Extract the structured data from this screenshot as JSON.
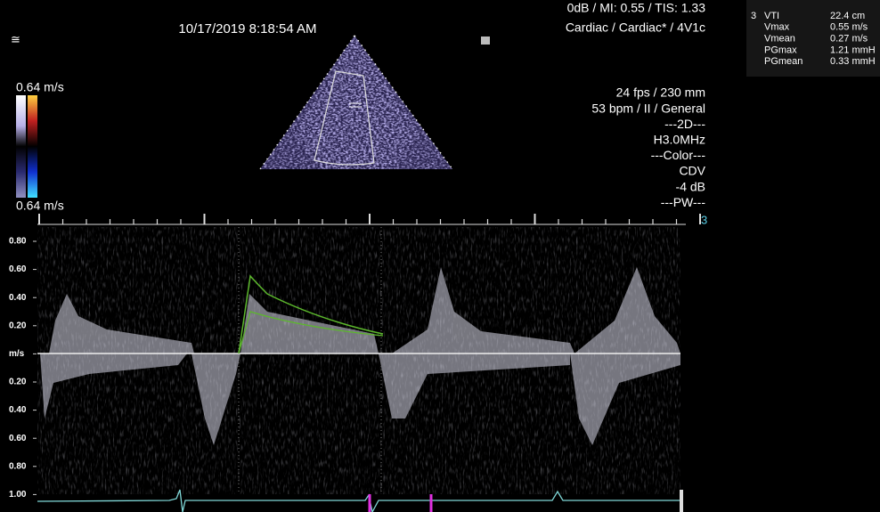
{
  "header": {
    "datetime": "10/17/2019 8:18:54 AM",
    "acoustic": "0dB / MI: 0.55 / TIS: 1.33",
    "preset": "Cardiac / Cardiac* / 4V1c"
  },
  "measurements": {
    "index": "3",
    "rows": [
      [
        "VTI",
        "22.4 cm"
      ],
      [
        "Vmax",
        "0.55 m/s"
      ],
      [
        "Vmean",
        "0.27 m/s"
      ],
      [
        "PGmax",
        "1.21 mmH"
      ],
      [
        "PGmean",
        "0.33 mmH"
      ]
    ]
  },
  "color_scale": {
    "top": "0.64 m/s",
    "bottom": "0.64 m/s"
  },
  "parameters": [
    "24 fps / 230 mm",
    "53 bpm / II / General",
    "---2D---",
    "H3.0MHz",
    "---Color---",
    "CDV",
    "-4 dB",
    "---PW---"
  ],
  "cursor_label": "3",
  "doppler_scale": [
    "0.80",
    "0.60",
    "0.40",
    "0.20",
    "m/s",
    "0.20",
    "0.40",
    "0.60",
    "0.80",
    "1.00"
  ]
}
